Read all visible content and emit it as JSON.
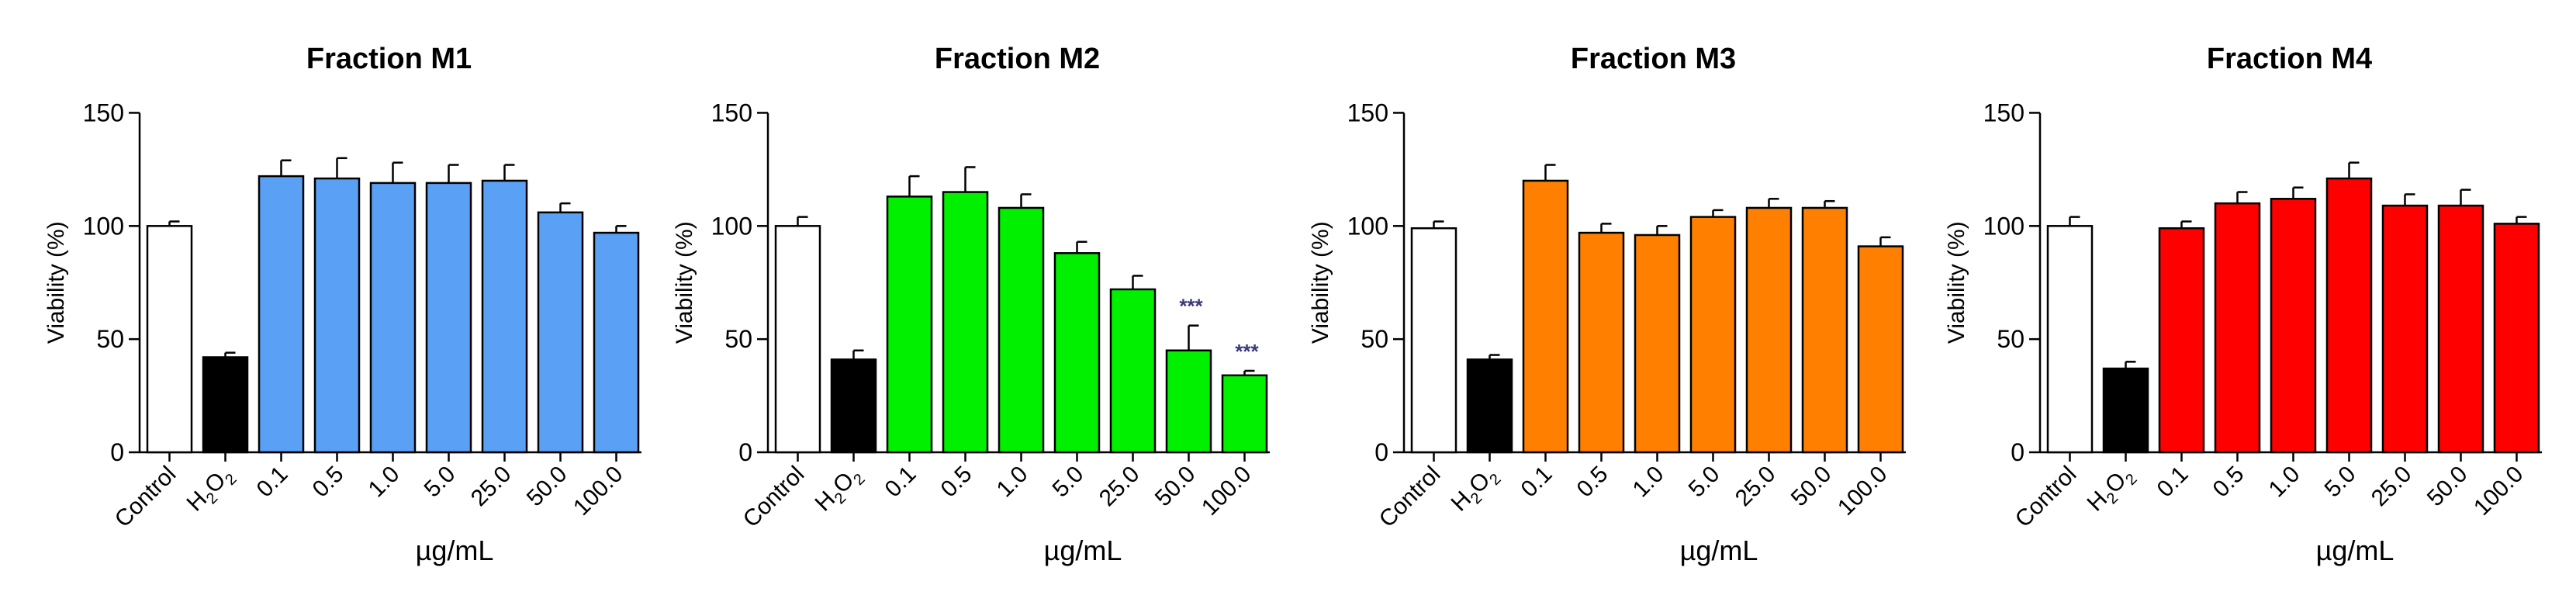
{
  "chart_data": [
    {
      "type": "bar",
      "title": "Fraction M1",
      "ylabel": "Viability (%)",
      "xlabel": "µg/mL",
      "ylim": [
        0,
        150
      ],
      "yticks": [
        0,
        50,
        100,
        150
      ],
      "categories": [
        "Control",
        "H2O2",
        "0.1",
        "0.5",
        "1.0",
        "5.0",
        "25.0",
        "50.0",
        "100.0"
      ],
      "values": [
        100,
        42,
        122,
        121,
        119,
        119,
        120,
        106,
        97
      ],
      "errors": [
        2,
        2,
        7,
        9,
        9,
        8,
        7,
        4,
        3
      ],
      "colors": [
        "#ffffff",
        "#000000",
        "#5aa0f5",
        "#5aa0f5",
        "#5aa0f5",
        "#5aa0f5",
        "#5aa0f5",
        "#5aa0f5",
        "#5aa0f5"
      ],
      "annotations": [
        "",
        "",
        "",
        "",
        "",
        "",
        "",
        "",
        ""
      ]
    },
    {
      "type": "bar",
      "title": "Fraction M2",
      "ylabel": "Viability (%)",
      "xlabel": "µg/mL",
      "ylim": [
        0,
        150
      ],
      "yticks": [
        0,
        50,
        100,
        150
      ],
      "categories": [
        "Control",
        "H2O2",
        "0.1",
        "0.5",
        "1.0",
        "5.0",
        "25.0",
        "50.0",
        "100.0"
      ],
      "values": [
        100,
        41,
        113,
        115,
        108,
        88,
        72,
        45,
        34
      ],
      "errors": [
        4,
        4,
        9,
        11,
        6,
        5,
        6,
        11,
        2
      ],
      "colors": [
        "#ffffff",
        "#000000",
        "#00f000",
        "#00f000",
        "#00f000",
        "#00f000",
        "#00f000",
        "#00f000",
        "#00f000"
      ],
      "annotations": [
        "",
        "",
        "",
        "",
        "",
        "",
        "",
        "***",
        "***"
      ]
    },
    {
      "type": "bar",
      "title": "Fraction M3",
      "ylabel": "Viability (%)",
      "xlabel": "µg/mL",
      "ylim": [
        0,
        150
      ],
      "yticks": [
        0,
        50,
        100,
        150
      ],
      "categories": [
        "Control",
        "H2O2",
        "0.1",
        "0.5",
        "1.0",
        "5.0",
        "25.0",
        "50.0",
        "100.0"
      ],
      "values": [
        99,
        41,
        120,
        97,
        96,
        104,
        108,
        108,
        91
      ],
      "errors": [
        3,
        2,
        7,
        4,
        4,
        3,
        4,
        3,
        4
      ],
      "colors": [
        "#ffffff",
        "#000000",
        "#ff8000",
        "#ff8000",
        "#ff8000",
        "#ff8000",
        "#ff8000",
        "#ff8000",
        "#ff8000"
      ],
      "annotations": [
        "",
        "",
        "",
        "",
        "",
        "",
        "",
        "",
        ""
      ]
    },
    {
      "type": "bar",
      "title": "Fraction M4",
      "ylabel": "Viability (%)",
      "xlabel": "µg/mL",
      "ylim": [
        0,
        150
      ],
      "yticks": [
        0,
        50,
        100,
        150
      ],
      "categories": [
        "Control",
        "H2O2",
        "0.1",
        "0.5",
        "1.0",
        "5.0",
        "25.0",
        "50.0",
        "100.0"
      ],
      "values": [
        100,
        37,
        99,
        110,
        112,
        121,
        109,
        109,
        101
      ],
      "errors": [
        4,
        3,
        3,
        5,
        5,
        7,
        5,
        7,
        3
      ],
      "colors": [
        "#ffffff",
        "#000000",
        "#ff0000",
        "#ff0000",
        "#ff0000",
        "#ff0000",
        "#ff0000",
        "#ff0000",
        "#ff0000"
      ],
      "annotations": [
        "",
        "",
        "",
        "",
        "",
        "",
        "",
        "",
        ""
      ]
    }
  ]
}
